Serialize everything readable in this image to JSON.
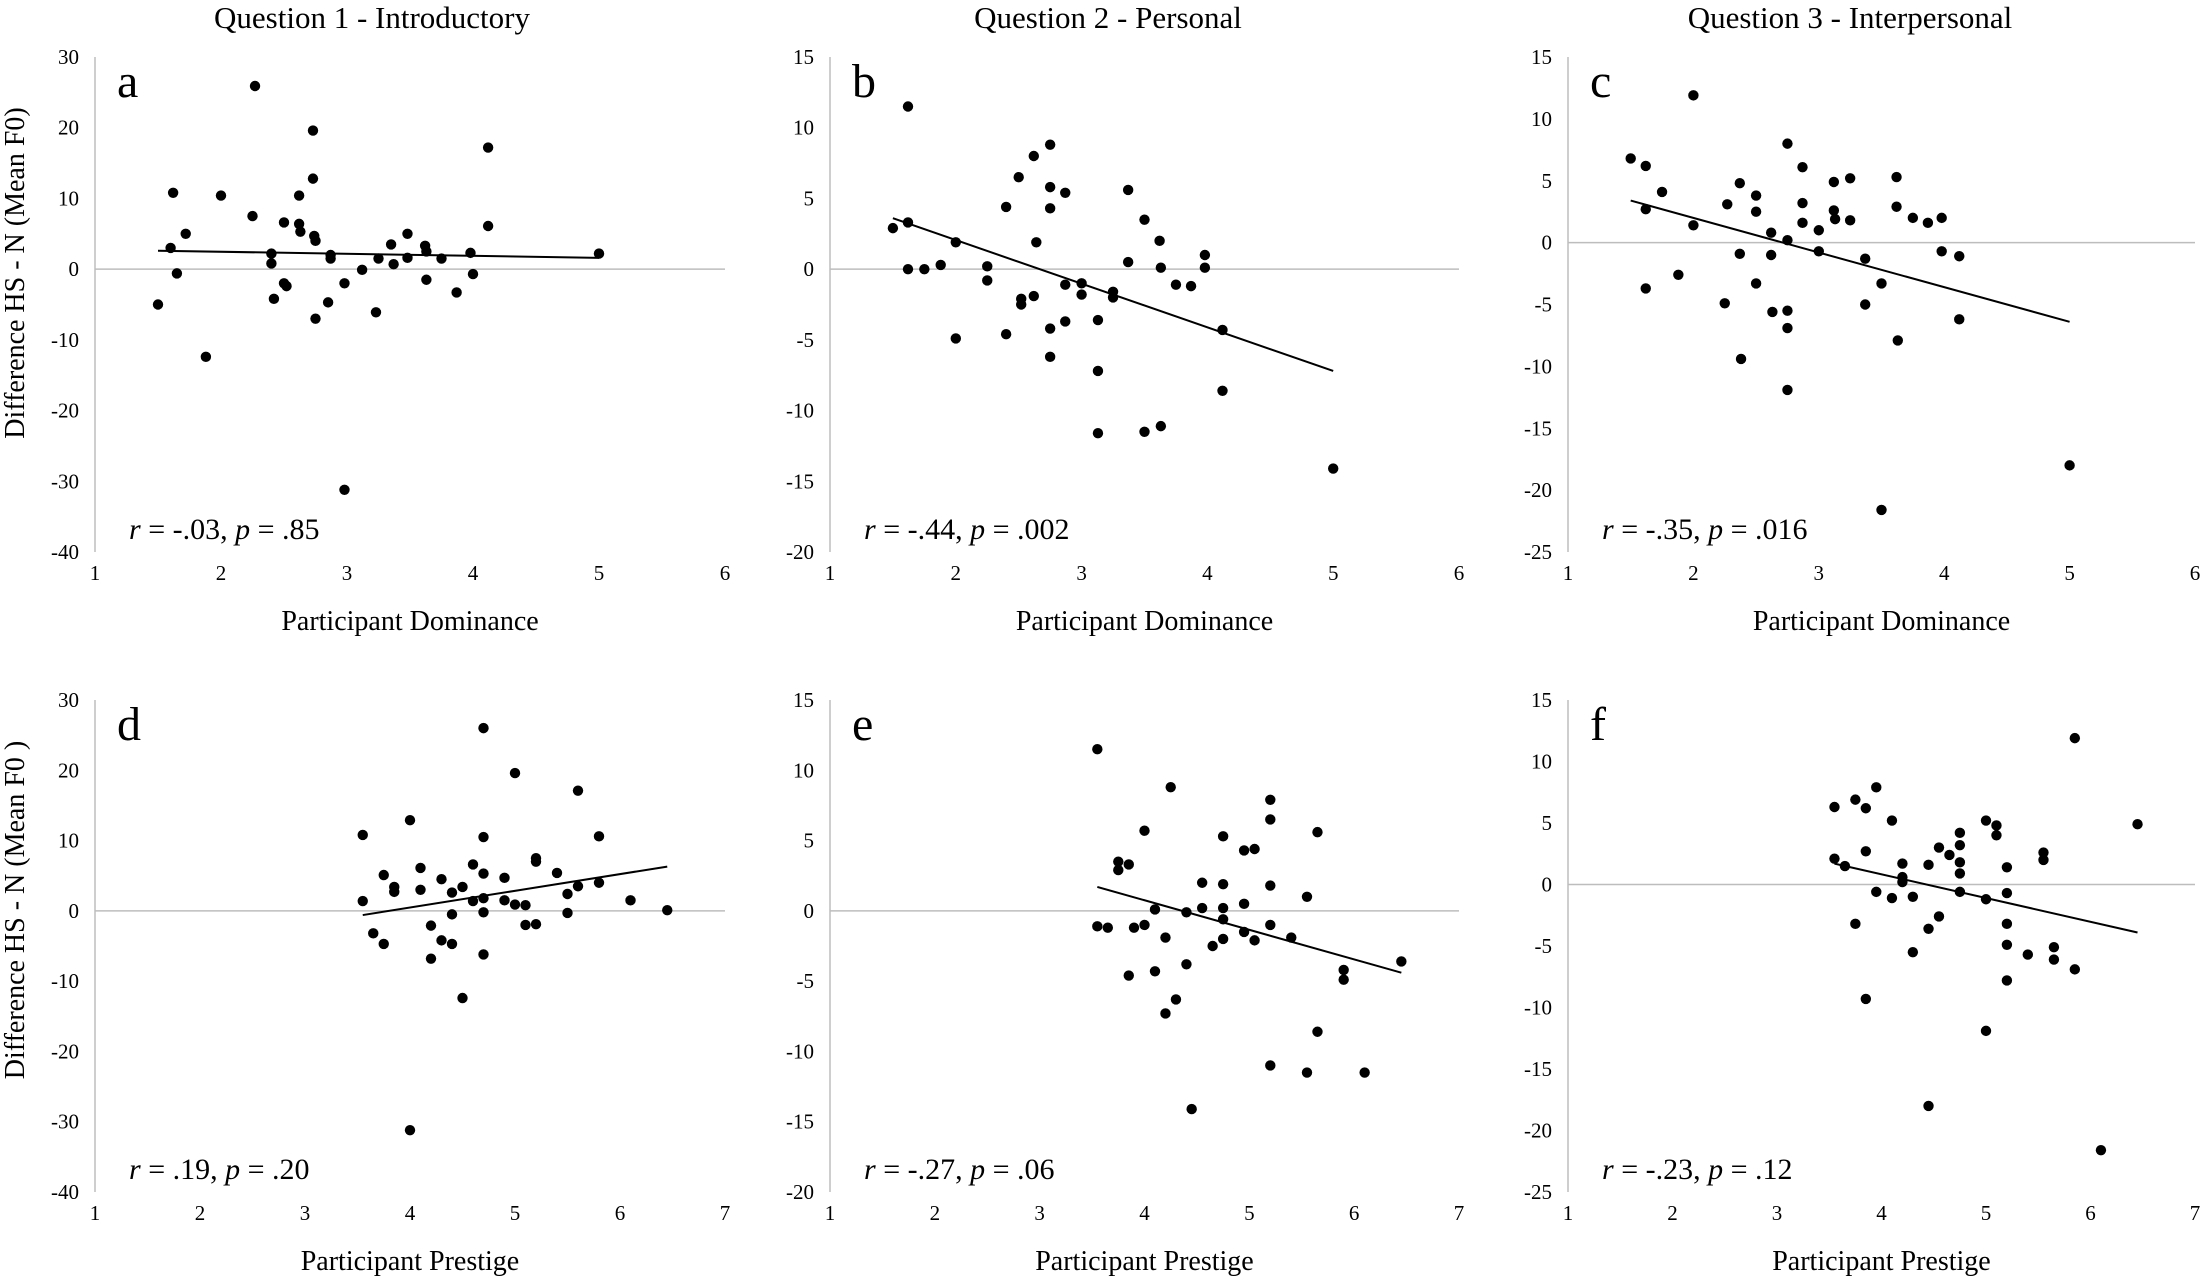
{
  "figure": {
    "column_titles": [
      "Question 1 - Introductory",
      "Question 2 - Personal",
      "Question 3 - Interpersonal"
    ],
    "row_ylabels": [
      "Difference HS - N (Mean F0)",
      "Difference HS - N (Mean F0 )"
    ]
  },
  "chart_data": [
    {
      "id": "a",
      "type": "scatter",
      "panel_label": "a",
      "xlabel": "Participant Dominance",
      "ylabel": "Difference HS - N (Mean F0)",
      "xlim": [
        1,
        6
      ],
      "ylim": [
        -40,
        30
      ],
      "xticks": [
        1,
        2,
        3,
        4,
        5,
        6
      ],
      "yticks": [
        -40,
        -30,
        -20,
        -10,
        0,
        10,
        20,
        30
      ],
      "stat": {
        "r_label": "r",
        "r_value": " = -.03, ",
        "p_label": "p",
        "p_value": " = .85"
      },
      "trendline": [
        [
          1.5,
          2.6
        ],
        [
          5.0,
          1.6
        ]
      ],
      "points": [
        [
          1.5,
          -5
        ],
        [
          1.6,
          3
        ],
        [
          1.62,
          10.8
        ],
        [
          1.65,
          -0.6
        ],
        [
          1.72,
          5
        ],
        [
          1.88,
          -12.4
        ],
        [
          2.0,
          10.4
        ],
        [
          2.25,
          7.5
        ],
        [
          2.27,
          25.9
        ],
        [
          2.4,
          2.2
        ],
        [
          2.4,
          0.8
        ],
        [
          2.42,
          -4.2
        ],
        [
          2.5,
          6.6
        ],
        [
          2.5,
          -2
        ],
        [
          2.52,
          -2.4
        ],
        [
          2.62,
          10.4
        ],
        [
          2.62,
          6.4
        ],
        [
          2.63,
          5.3
        ],
        [
          2.73,
          19.6
        ],
        [
          2.73,
          12.8
        ],
        [
          2.74,
          4.7
        ],
        [
          2.75,
          4
        ],
        [
          2.75,
          -7
        ],
        [
          2.85,
          -4.7
        ],
        [
          2.87,
          2
        ],
        [
          2.87,
          1.5
        ],
        [
          2.98,
          -2
        ],
        [
          2.98,
          -31.2
        ],
        [
          3.12,
          -0.1
        ],
        [
          3.23,
          -6.1
        ],
        [
          3.25,
          1.5
        ],
        [
          3.35,
          3.5
        ],
        [
          3.37,
          0.7
        ],
        [
          3.48,
          1.6
        ],
        [
          3.48,
          5
        ],
        [
          3.62,
          3.3
        ],
        [
          3.63,
          2.5
        ],
        [
          3.63,
          -1.5
        ],
        [
          3.75,
          1.5
        ],
        [
          3.87,
          -3.3
        ],
        [
          3.98,
          2.3
        ],
        [
          4.0,
          -0.7
        ],
        [
          4.12,
          17.2
        ],
        [
          4.12,
          6.1
        ],
        [
          5.0,
          2.2
        ]
      ]
    },
    {
      "id": "b",
      "type": "scatter",
      "panel_label": "b",
      "xlabel": "Participant Dominance",
      "ylabel": "",
      "xlim": [
        1,
        6
      ],
      "ylim": [
        -20,
        15
      ],
      "xticks": [
        1,
        2,
        3,
        4,
        5,
        6
      ],
      "yticks": [
        -20,
        -15,
        -10,
        -5,
        0,
        5,
        10,
        15
      ],
      "stat": {
        "r_label": "r",
        "r_value": " = -.44, ",
        "p_label": "p",
        "p_value": " = .002"
      },
      "trendline": [
        [
          1.5,
          3.6
        ],
        [
          5.0,
          -7.2
        ]
      ],
      "points": [
        [
          1.5,
          2.9
        ],
        [
          1.62,
          11.5
        ],
        [
          1.62,
          3.3
        ],
        [
          1.62,
          0
        ],
        [
          1.75,
          0
        ],
        [
          1.88,
          0.3
        ],
        [
          2.0,
          1.9
        ],
        [
          2.0,
          -4.9
        ],
        [
          2.25,
          0.2
        ],
        [
          2.25,
          -0.8
        ],
        [
          2.4,
          4.4
        ],
        [
          2.4,
          -4.6
        ],
        [
          2.5,
          6.5
        ],
        [
          2.52,
          -2.1
        ],
        [
          2.52,
          -2.5
        ],
        [
          2.62,
          -1.9
        ],
        [
          2.62,
          8
        ],
        [
          2.64,
          1.9
        ],
        [
          2.75,
          8.8
        ],
        [
          2.75,
          5.8
        ],
        [
          2.75,
          4.3
        ],
        [
          2.75,
          -4.2
        ],
        [
          2.75,
          -6.2
        ],
        [
          2.87,
          5.4
        ],
        [
          2.87,
          -1.1
        ],
        [
          2.87,
          -3.7
        ],
        [
          3.0,
          -1
        ],
        [
          3.0,
          -1.8
        ],
        [
          3.13,
          -3.6
        ],
        [
          3.13,
          -7.2
        ],
        [
          3.13,
          -11.6
        ],
        [
          3.25,
          -1.6
        ],
        [
          3.25,
          -2
        ],
        [
          3.37,
          5.6
        ],
        [
          3.37,
          0.5
        ],
        [
          3.5,
          3.5
        ],
        [
          3.5,
          -11.5
        ],
        [
          3.62,
          2
        ],
        [
          3.63,
          0.1
        ],
        [
          3.63,
          -11.1
        ],
        [
          3.75,
          -1.1
        ],
        [
          3.87,
          -1.2
        ],
        [
          3.98,
          1
        ],
        [
          3.98,
          0.1
        ],
        [
          4.12,
          -4.3
        ],
        [
          4.12,
          -8.6
        ],
        [
          5.0,
          -14.1
        ]
      ]
    },
    {
      "id": "c",
      "type": "scatter",
      "panel_label": "c",
      "xlabel": "Participant Dominance",
      "ylabel": "",
      "xlim": [
        1,
        6
      ],
      "ylim": [
        -25,
        15
      ],
      "xticks": [
        1,
        2,
        3,
        4,
        5,
        6
      ],
      "yticks": [
        -25,
        -20,
        -15,
        -10,
        -5,
        0,
        5,
        10,
        15
      ],
      "stat": {
        "r_label": "r",
        "r_value": " = -.35, ",
        "p_label": "p",
        "p_value": " = .016"
      },
      "trendline": [
        [
          1.5,
          3.4
        ],
        [
          5.0,
          -6.4
        ]
      ],
      "points": [
        [
          1.5,
          6.8
        ],
        [
          1.62,
          6.2
        ],
        [
          1.62,
          2.7
        ],
        [
          1.62,
          -3.7
        ],
        [
          1.75,
          4.1
        ],
        [
          1.88,
          -2.6
        ],
        [
          2.0,
          11.9
        ],
        [
          2.0,
          1.4
        ],
        [
          2.25,
          -4.9
        ],
        [
          2.27,
          3.1
        ],
        [
          2.37,
          4.8
        ],
        [
          2.37,
          -0.9
        ],
        [
          2.38,
          -9.4
        ],
        [
          2.5,
          3.8
        ],
        [
          2.5,
          2.5
        ],
        [
          2.5,
          -3.3
        ],
        [
          2.62,
          0.8
        ],
        [
          2.62,
          -1
        ],
        [
          2.63,
          -5.6
        ],
        [
          2.75,
          8
        ],
        [
          2.75,
          0.2
        ],
        [
          2.75,
          -5.5
        ],
        [
          2.75,
          -6.9
        ],
        [
          2.75,
          -11.9
        ],
        [
          2.87,
          6.1
        ],
        [
          2.87,
          3.2
        ],
        [
          2.87,
          1.6
        ],
        [
          3.0,
          -0.7
        ],
        [
          3.0,
          1
        ],
        [
          3.12,
          4.9
        ],
        [
          3.12,
          2.6
        ],
        [
          3.13,
          1.9
        ],
        [
          3.25,
          5.2
        ],
        [
          3.25,
          1.8
        ],
        [
          3.37,
          -1.3
        ],
        [
          3.37,
          -5
        ],
        [
          3.5,
          -3.3
        ],
        [
          3.5,
          -21.6
        ],
        [
          3.62,
          5.3
        ],
        [
          3.62,
          2.9
        ],
        [
          3.63,
          -7.9
        ],
        [
          3.75,
          2
        ],
        [
          3.87,
          1.6
        ],
        [
          3.98,
          2
        ],
        [
          3.98,
          -0.7
        ],
        [
          4.12,
          -1.1
        ],
        [
          4.12,
          -6.2
        ],
        [
          5.0,
          -18
        ]
      ]
    },
    {
      "id": "d",
      "type": "scatter",
      "panel_label": "d",
      "xlabel": "Participant Prestige",
      "ylabel": "Difference HS - N (Mean F0 )",
      "xlim": [
        1,
        7
      ],
      "ylim": [
        -40,
        30
      ],
      "xticks": [
        1,
        2,
        3,
        4,
        5,
        6,
        7
      ],
      "yticks": [
        -40,
        -30,
        -20,
        -10,
        0,
        10,
        20,
        30
      ],
      "stat": {
        "r_label": "r",
        "r_value": " = .19, ",
        "p_label": "p",
        "p_value": " = .20"
      },
      "trendline": [
        [
          3.55,
          -0.6
        ],
        [
          6.45,
          6.3
        ]
      ],
      "points": [
        [
          3.55,
          10.8
        ],
        [
          3.55,
          1.4
        ],
        [
          3.65,
          -3.2
        ],
        [
          3.75,
          5.1
        ],
        [
          3.75,
          -4.7
        ],
        [
          3.85,
          2.7
        ],
        [
          3.85,
          3.4
        ],
        [
          4.0,
          12.9
        ],
        [
          4.0,
          -31.2
        ],
        [
          4.1,
          6.1
        ],
        [
          4.1,
          3
        ],
        [
          4.2,
          -6.8
        ],
        [
          4.2,
          -2.1
        ],
        [
          4.3,
          4.5
        ],
        [
          4.3,
          -4.2
        ],
        [
          4.4,
          2.6
        ],
        [
          4.4,
          -0.5
        ],
        [
          4.4,
          -4.7
        ],
        [
          4.5,
          -12.4
        ],
        [
          4.5,
          3.4
        ],
        [
          4.6,
          6.6
        ],
        [
          4.6,
          1.4
        ],
        [
          4.7,
          26
        ],
        [
          4.7,
          10.5
        ],
        [
          4.7,
          5.3
        ],
        [
          4.7,
          1.8
        ],
        [
          4.7,
          -0.2
        ],
        [
          4.7,
          -6.2
        ],
        [
          4.9,
          4.7
        ],
        [
          4.9,
          1.5
        ],
        [
          5.0,
          19.6
        ],
        [
          5.0,
          0.9
        ],
        [
          5.1,
          -2
        ],
        [
          5.1,
          0.8
        ],
        [
          5.2,
          7.5
        ],
        [
          5.2,
          7
        ],
        [
          5.2,
          -1.9
        ],
        [
          5.4,
          5.4
        ],
        [
          5.5,
          2.4
        ],
        [
          5.5,
          -0.3
        ],
        [
          5.6,
          17.1
        ],
        [
          5.6,
          3.5
        ],
        [
          5.8,
          10.6
        ],
        [
          5.8,
          4
        ],
        [
          6.1,
          1.5
        ],
        [
          6.45,
          0.1
        ]
      ]
    },
    {
      "id": "e",
      "type": "scatter",
      "panel_label": "e",
      "xlabel": "Participant Prestige",
      "ylabel": "",
      "xlim": [
        1,
        7
      ],
      "ylim": [
        -20,
        15
      ],
      "xticks": [
        1,
        2,
        3,
        4,
        5,
        6,
        7
      ],
      "yticks": [
        -20,
        -15,
        -10,
        -5,
        0,
        5,
        10,
        15
      ],
      "stat": {
        "r_label": "r",
        "r_value": " = -.27, ",
        "p_label": "p",
        "p_value": " = .06"
      },
      "trendline": [
        [
          3.55,
          1.7
        ],
        [
          6.45,
          -4.4
        ]
      ],
      "points": [
        [
          3.55,
          11.5
        ],
        [
          3.55,
          -1.1
        ],
        [
          3.65,
          -1.2
        ],
        [
          3.75,
          3.5
        ],
        [
          3.75,
          2.9
        ],
        [
          3.85,
          3.3
        ],
        [
          3.85,
          -4.6
        ],
        [
          3.9,
          -1.2
        ],
        [
          4.0,
          5.7
        ],
        [
          4.0,
          -1
        ],
        [
          4.1,
          -4.3
        ],
        [
          4.1,
          0.1
        ],
        [
          4.2,
          -1.9
        ],
        [
          4.2,
          -7.3
        ],
        [
          4.25,
          8.8
        ],
        [
          4.3,
          -6.3
        ],
        [
          4.4,
          -3.8
        ],
        [
          4.4,
          -0.1
        ],
        [
          4.45,
          -14.1
        ],
        [
          4.55,
          2
        ],
        [
          4.55,
          0.2
        ],
        [
          4.65,
          -2.5
        ],
        [
          4.75,
          5.3
        ],
        [
          4.75,
          1.9
        ],
        [
          4.75,
          0.2
        ],
        [
          4.75,
          -2
        ],
        [
          4.75,
          -0.6
        ],
        [
          4.95,
          4.3
        ],
        [
          4.95,
          0.5
        ],
        [
          4.95,
          -1.5
        ],
        [
          5.05,
          4.4
        ],
        [
          5.05,
          -2.1
        ],
        [
          5.2,
          7.9
        ],
        [
          5.2,
          6.5
        ],
        [
          5.2,
          1.8
        ],
        [
          5.2,
          -1
        ],
        [
          5.2,
          -11
        ],
        [
          5.4,
          -1.9
        ],
        [
          5.55,
          -11.5
        ],
        [
          5.55,
          1
        ],
        [
          5.65,
          5.6
        ],
        [
          5.65,
          -8.6
        ],
        [
          5.9,
          -4.2
        ],
        [
          5.9,
          -4.9
        ],
        [
          6.1,
          -11.5
        ],
        [
          6.45,
          -3.6
        ]
      ]
    },
    {
      "id": "f",
      "type": "scatter",
      "panel_label": "f",
      "xlabel": "Participant Prestige",
      "ylabel": "",
      "xlim": [
        1,
        7
      ],
      "ylim": [
        -25,
        15
      ],
      "xticks": [
        1,
        2,
        3,
        4,
        5,
        6,
        7
      ],
      "yticks": [
        -25,
        -20,
        -15,
        -10,
        -5,
        0,
        5,
        10,
        15
      ],
      "stat": {
        "r_label": "r",
        "r_value": " = -.23, ",
        "p_label": "p",
        "p_value": " = .12"
      },
      "trendline": [
        [
          3.55,
          1.7
        ],
        [
          6.45,
          -3.9
        ]
      ],
      "points": [
        [
          3.55,
          6.3
        ],
        [
          3.55,
          2.1
        ],
        [
          3.65,
          1.5
        ],
        [
          3.75,
          6.9
        ],
        [
          3.75,
          -3.2
        ],
        [
          3.85,
          6.2
        ],
        [
          3.85,
          2.7
        ],
        [
          3.85,
          -9.3
        ],
        [
          3.95,
          7.9
        ],
        [
          3.95,
          -0.6
        ],
        [
          4.1,
          5.2
        ],
        [
          4.1,
          -1.1
        ],
        [
          4.2,
          1.7
        ],
        [
          4.2,
          0.6
        ],
        [
          4.2,
          0.2
        ],
        [
          4.3,
          -1
        ],
        [
          4.3,
          -5.5
        ],
        [
          4.45,
          1.6
        ],
        [
          4.45,
          -3.6
        ],
        [
          4.45,
          -18
        ],
        [
          4.55,
          3
        ],
        [
          4.55,
          -2.6
        ],
        [
          4.65,
          2.4
        ],
        [
          4.75,
          4.2
        ],
        [
          4.75,
          3.2
        ],
        [
          4.75,
          1.8
        ],
        [
          4.75,
          0.9
        ],
        [
          4.75,
          -0.6
        ],
        [
          5.0,
          5.2
        ],
        [
          5.0,
          -1.2
        ],
        [
          5.0,
          -11.9
        ],
        [
          5.1,
          4.8
        ],
        [
          5.1,
          4
        ],
        [
          5.2,
          1.4
        ],
        [
          5.2,
          -0.7
        ],
        [
          5.2,
          -3.2
        ],
        [
          5.2,
          -4.9
        ],
        [
          5.2,
          -7.8
        ],
        [
          5.4,
          -5.7
        ],
        [
          5.55,
          2.6
        ],
        [
          5.55,
          2
        ],
        [
          5.65,
          -5.1
        ],
        [
          5.65,
          -6.1
        ],
        [
          5.85,
          11.9
        ],
        [
          5.85,
          -6.9
        ],
        [
          6.1,
          -21.6
        ],
        [
          6.45,
          4.9
        ]
      ]
    }
  ]
}
